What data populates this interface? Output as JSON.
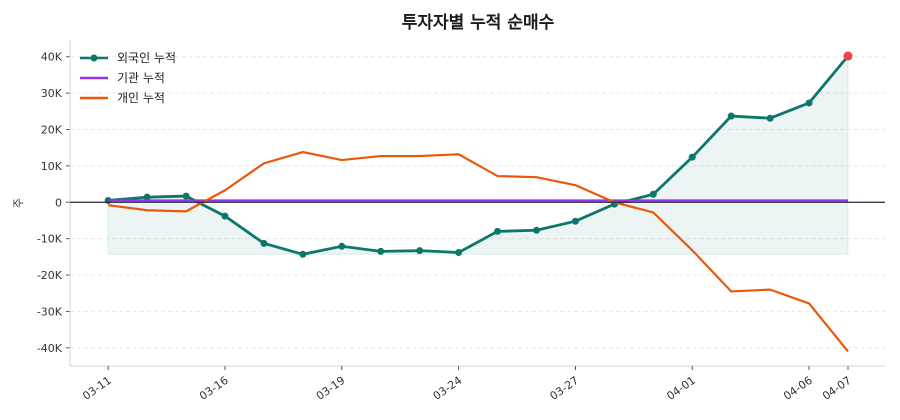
{
  "chart_data": {
    "type": "line",
    "title": "투자자별 누적 순매수",
    "ylabel": "주",
    "xlabel": "",
    "x": [
      "03-11",
      "03-12",
      "03-13",
      "03-16",
      "03-17",
      "03-18",
      "03-19",
      "03-20",
      "03-23",
      "03-24",
      "03-25",
      "03-26",
      "03-27",
      "03-30",
      "03-31",
      "04-01",
      "04-02",
      "04-03",
      "04-06",
      "04-07"
    ],
    "xticks": [
      "03-11",
      "03-16",
      "03-19",
      "03-24",
      "03-27",
      "04-01",
      "04-06",
      "04-07"
    ],
    "ylim": [
      -45000,
      44600
    ],
    "yticks": [
      -40000,
      -30000,
      -20000,
      -10000,
      0,
      10000,
      20000,
      30000,
      40000
    ],
    "ytick_labels": [
      "-40K",
      "-30K",
      "-20K",
      "-10K",
      "0",
      "10K",
      "20K",
      "30K",
      "40K"
    ],
    "grid": "horizontal dashed",
    "legend_position": "top-left",
    "series": [
      {
        "name": "외국인 누적",
        "color": "#0f766e",
        "markers": true,
        "fill_to_min": true,
        "values": [
          500,
          1400,
          1700,
          -3800,
          -11300,
          -14300,
          -12100,
          -13500,
          -13300,
          -13800,
          -8000,
          -7700,
          -5200,
          -500,
          2200,
          12400,
          23700,
          23100,
          27300,
          40200
        ],
        "last_point_highlight": "#ef4444"
      },
      {
        "name": "기관 누적",
        "color": "#9333ea",
        "markers": false,
        "values": [
          500,
          500,
          500,
          500,
          500,
          500,
          500,
          500,
          500,
          500,
          500,
          500,
          500,
          500,
          500,
          500,
          500,
          500,
          500,
          500
        ]
      },
      {
        "name": "개인 누적",
        "color": "#ea580c",
        "markers": false,
        "values": [
          -800,
          -2200,
          -2500,
          3300,
          10700,
          13800,
          11600,
          12700,
          12700,
          13200,
          7200,
          6900,
          4700,
          0,
          -2800,
          -13200,
          -24500,
          -24000,
          -27800,
          -41000
        ]
      }
    ]
  }
}
